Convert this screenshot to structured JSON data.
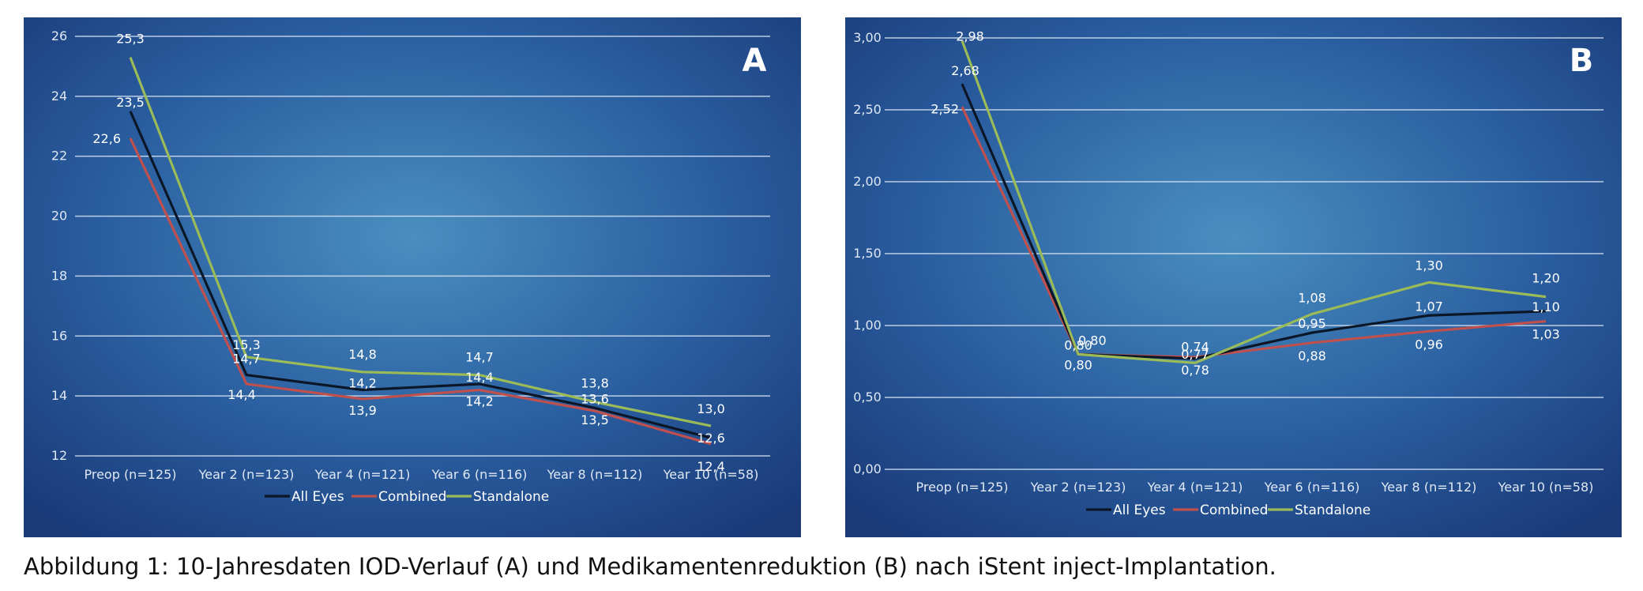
{
  "chart_data": [
    {
      "type": "line",
      "panel_label": "A",
      "categories": [
        "Preop (n=125)",
        "Year 2 (n=123)",
        "Year 4 (n=121)",
        "Year 6 (n=116)",
        "Year 8 (n=112)",
        "Year 10 (n=58)"
      ],
      "ylim": [
        12,
        26
      ],
      "yticks": [
        "12",
        "14",
        "16",
        "18",
        "20",
        "22",
        "24",
        "26"
      ],
      "grid": true,
      "legend_position": "bottom",
      "series": [
        {
          "name": "All Eyes",
          "color": "#0b1626",
          "values": [
            23.5,
            14.7,
            14.2,
            14.4,
            13.6,
            12.6
          ],
          "labels": [
            "23,5",
            "14,7",
            "14,2",
            "14,4",
            "13,6",
            "12,6"
          ]
        },
        {
          "name": "Combined",
          "color": "#c0504d",
          "values": [
            22.6,
            14.4,
            13.9,
            14.2,
            13.5,
            12.4
          ],
          "labels": [
            "22,6",
            "14,4",
            "13,9",
            "14,2",
            "13,5",
            "12,4"
          ]
        },
        {
          "name": "Standalone",
          "color": "#9bbb59",
          "values": [
            25.3,
            15.3,
            14.8,
            14.7,
            13.8,
            13.0
          ],
          "labels": [
            "25,3",
            "15,3",
            "14,8",
            "14,7",
            "13,8",
            "13,0"
          ]
        }
      ]
    },
    {
      "type": "line",
      "panel_label": "B",
      "categories": [
        "Preop (n=125)",
        "Year 2 (n=123)",
        "Year 4 (n=121)",
        "Year 6 (n=116)",
        "Year 8 (n=112)",
        "Year 10 (n=58)"
      ],
      "ylim": [
        0,
        3
      ],
      "yticks": [
        "0,00",
        "0,50",
        "1,00",
        "1,50",
        "2,00",
        "2,50",
        "3,00"
      ],
      "grid": true,
      "legend_position": "bottom",
      "series": [
        {
          "name": "All Eyes",
          "color": "#0b1626",
          "values": [
            2.68,
            0.8,
            0.77,
            0.95,
            1.07,
            1.1
          ],
          "labels": [
            "2,68",
            "0,80",
            "0,77",
            "0,95",
            "1,07",
            "1,10"
          ]
        },
        {
          "name": "Combined",
          "color": "#c0504d",
          "values": [
            2.52,
            0.8,
            0.78,
            0.88,
            0.96,
            1.03
          ],
          "labels": [
            "2,52",
            "0,80",
            "0,78",
            "0,88",
            "0,96",
            "1,03"
          ]
        },
        {
          "name": "Standalone",
          "color": "#9bbb59",
          "values": [
            2.98,
            0.8,
            0.74,
            1.08,
            1.3,
            1.2
          ],
          "labels": [
            "2,98",
            "0,80",
            "0,74",
            "1,08",
            "1,30",
            "1,20"
          ]
        }
      ]
    }
  ],
  "caption": "Abbildung 1: 10-Jahresdaten IOD-Verlauf (A) und Medikamentenreduktion (B) nach iStent inject-Implantation."
}
